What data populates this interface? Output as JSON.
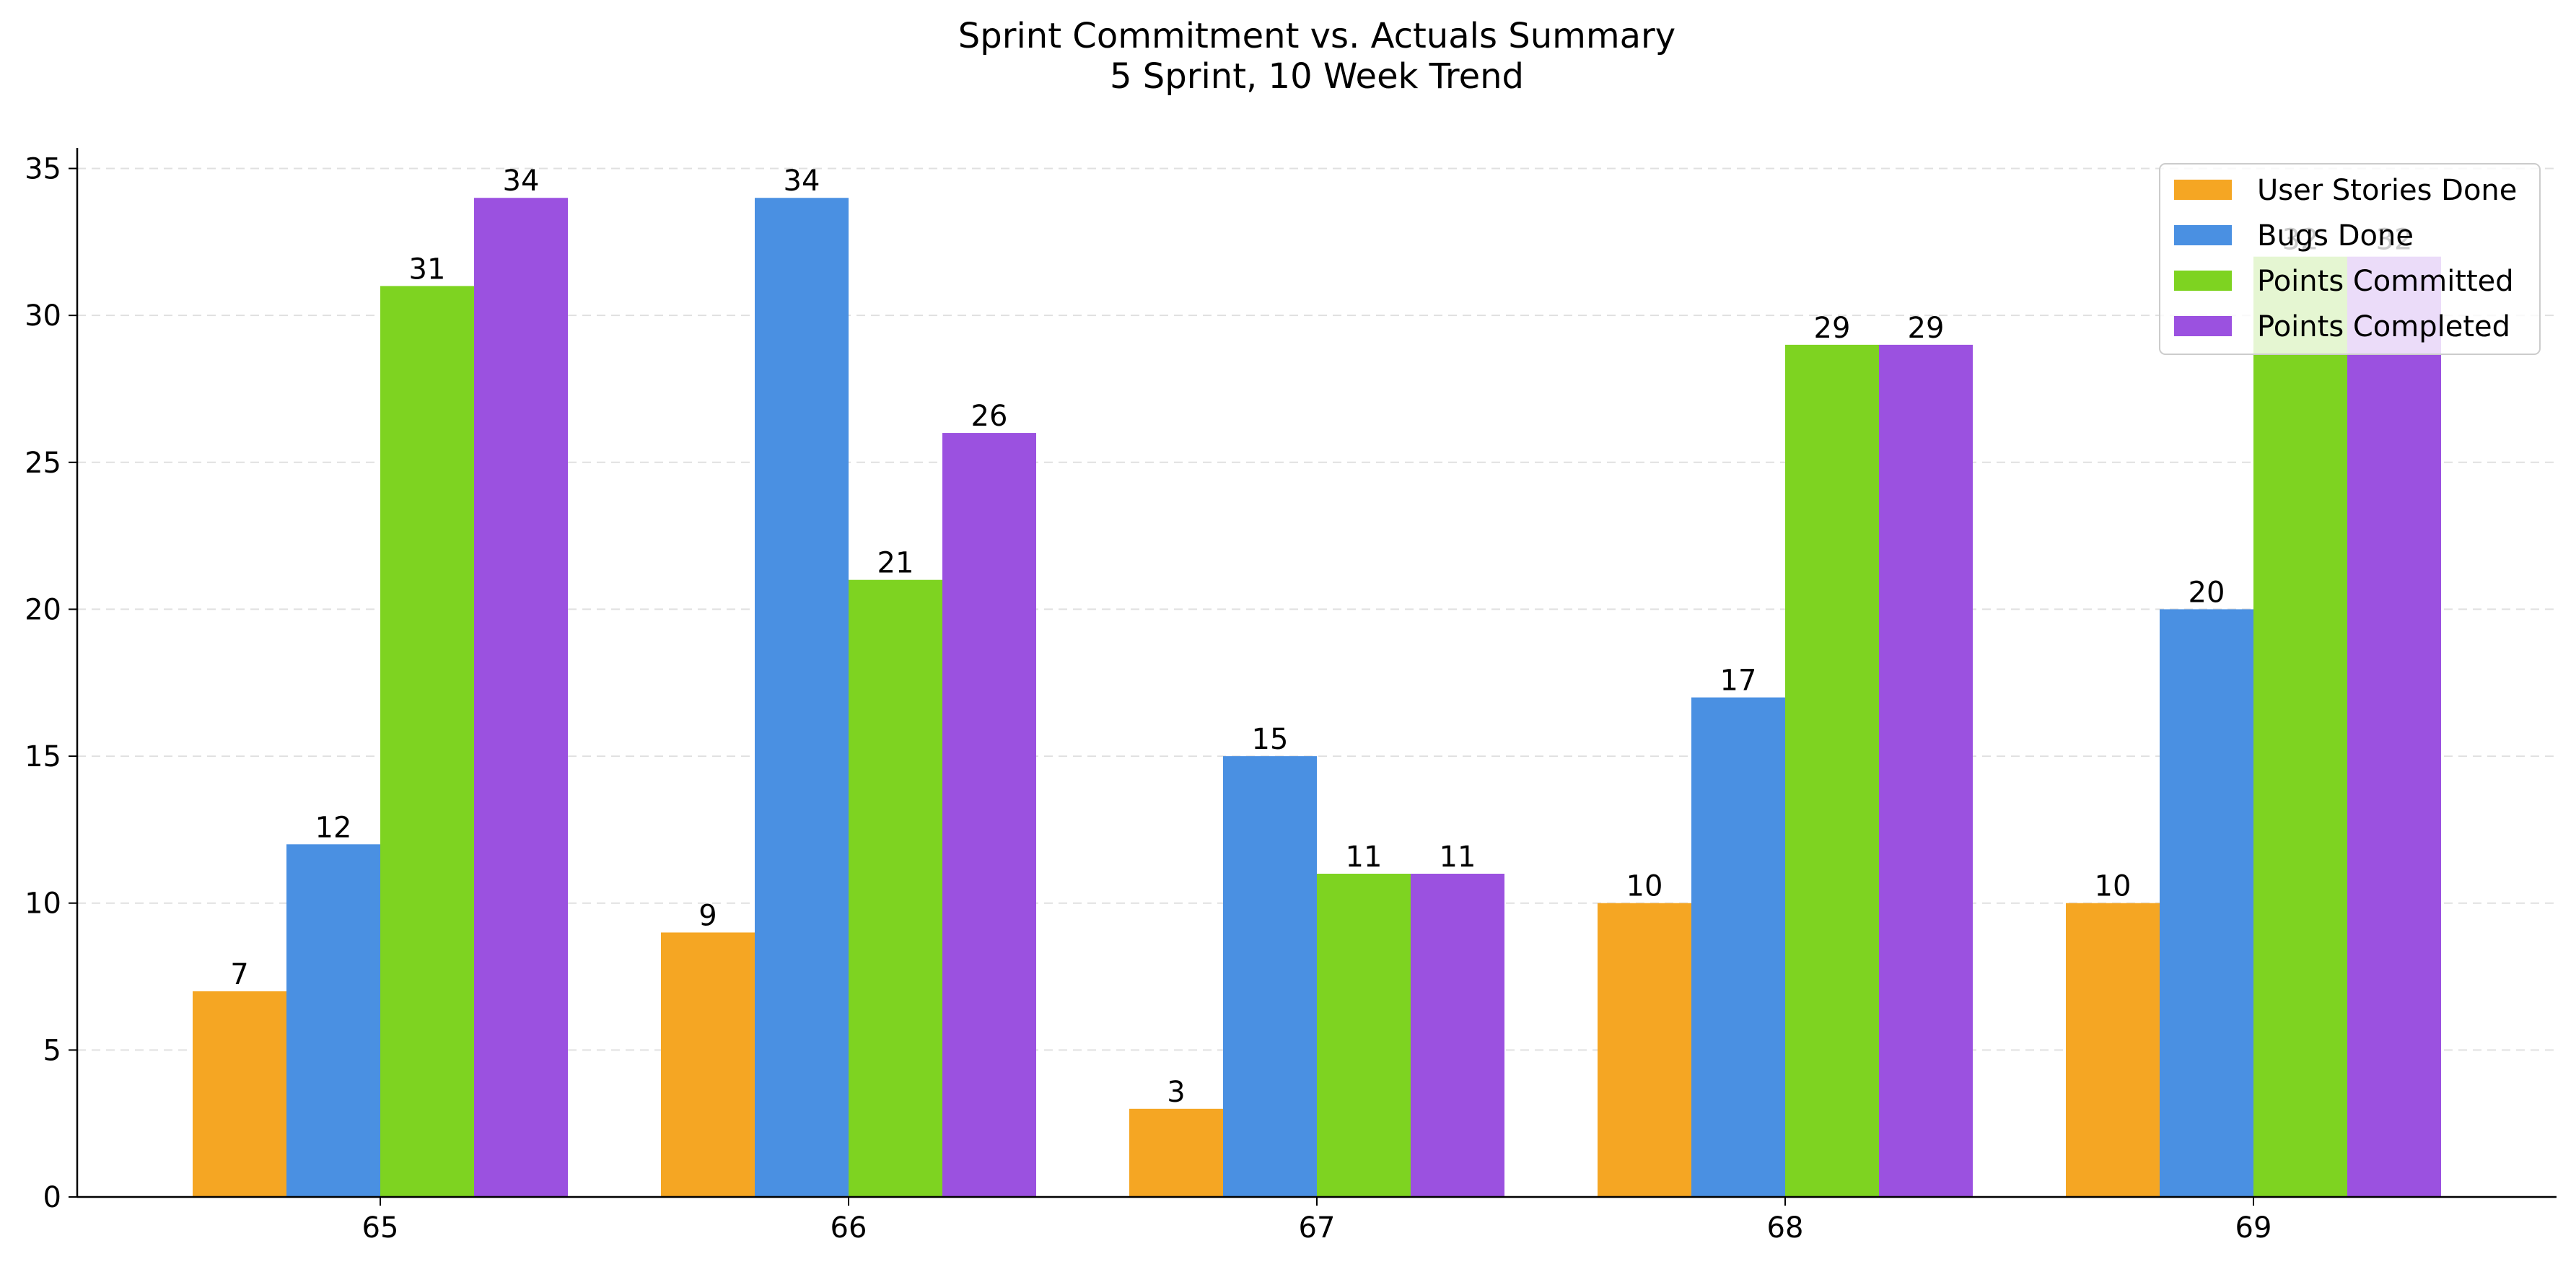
{
  "chart_data": {
    "type": "bar",
    "title": "Sprint Commitment vs. Actuals Summary",
    "subtitle": "5 Sprint, 10 Week Trend",
    "xlabel": "",
    "ylabel": "",
    "categories": [
      "65",
      "66",
      "67",
      "68",
      "69"
    ],
    "series": [
      {
        "name": "User Stories Done",
        "color": "#F5A623",
        "values": [
          7,
          9,
          3,
          10,
          10
        ]
      },
      {
        "name": "Bugs Done",
        "color": "#4A90E2",
        "values": [
          12,
          34,
          15,
          17,
          20
        ]
      },
      {
        "name": "Points Committed",
        "color": "#7ED321",
        "values": [
          31,
          21,
          11,
          29,
          32
        ]
      },
      {
        "name": "Points Completed",
        "color": "#9B51E0",
        "values": [
          34,
          26,
          11,
          29,
          32
        ]
      }
    ],
    "ylim": [
      0,
      35.7
    ],
    "yticks": [
      0,
      5,
      10,
      15,
      20,
      25,
      30,
      35
    ],
    "grid": "y-dashed",
    "legend": "top-right",
    "data_labels": true
  }
}
